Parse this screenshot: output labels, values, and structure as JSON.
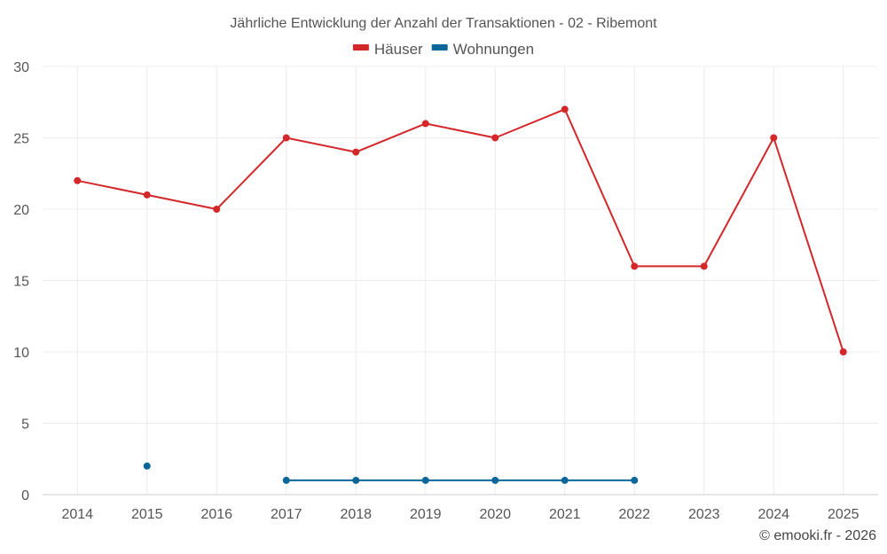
{
  "chart_data": {
    "type": "line",
    "title": "Jährliche Entwicklung der Anzahl der Transaktionen - 02 - Ribemont",
    "xlabel": "",
    "ylabel": "",
    "categories": [
      "2014",
      "2015",
      "2016",
      "2017",
      "2018",
      "2019",
      "2020",
      "2021",
      "2022",
      "2023",
      "2024",
      "2025"
    ],
    "ylim": [
      0,
      30
    ],
    "yticks": [
      "0",
      "5",
      "10",
      "15",
      "20",
      "25",
      "30"
    ],
    "grid": true,
    "legend_position": "top-center",
    "series": [
      {
        "name": "Häuser",
        "color": "#d3272a",
        "values": [
          22,
          21,
          20,
          25,
          24,
          26,
          25,
          27,
          16,
          16,
          25,
          10
        ]
      },
      {
        "name": "Wohnungen",
        "color": "#0b6699",
        "values": [
          null,
          2,
          null,
          1,
          1,
          1,
          1,
          1,
          1,
          null,
          null,
          null
        ]
      }
    ]
  },
  "credit": "© emooki.fr - 2026"
}
